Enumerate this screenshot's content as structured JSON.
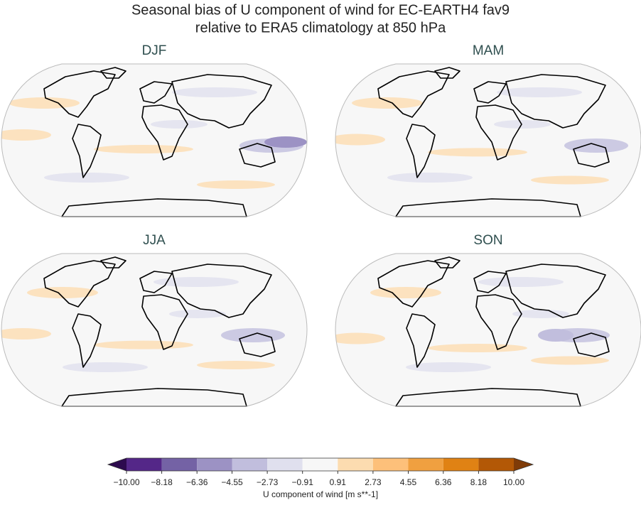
{
  "title_lines": [
    "Seasonal bias of U component of wind for EC-EARTH4 fav9",
    "relative to ERA5 climatology at 850 hPa"
  ],
  "panels": [
    {
      "title": "DJF"
    },
    {
      "title": "MAM"
    },
    {
      "title": "JJA"
    },
    {
      "title": "SON"
    }
  ],
  "colorbar": {
    "label": "U component of wind [m s**-1]",
    "ticks": [
      {
        "value": -10,
        "label": "−10.00"
      },
      {
        "value": -8.18,
        "label": "−8.18"
      },
      {
        "value": -6.36,
        "label": "−6.36"
      },
      {
        "value": -4.55,
        "label": "−4.55"
      },
      {
        "value": -2.73,
        "label": "−2.73"
      },
      {
        "value": -0.91,
        "label": "−0.91"
      },
      {
        "value": 0.91,
        "label": "0.91"
      },
      {
        "value": 2.73,
        "label": "2.73"
      },
      {
        "value": 4.55,
        "label": "4.55"
      },
      {
        "value": 6.36,
        "label": "6.36"
      },
      {
        "value": 8.18,
        "label": "8.18"
      },
      {
        "value": 10,
        "label": "10.00"
      }
    ],
    "colors": [
      "#2d0a4e",
      "#542788",
      "#7462a5",
      "#9c92c4",
      "#c1bedd",
      "#e0e0ee",
      "#f7f7f7",
      "#fcdcb0",
      "#fdc07a",
      "#f0a040",
      "#e08214",
      "#b35806",
      "#7f3b08"
    ]
  }
}
